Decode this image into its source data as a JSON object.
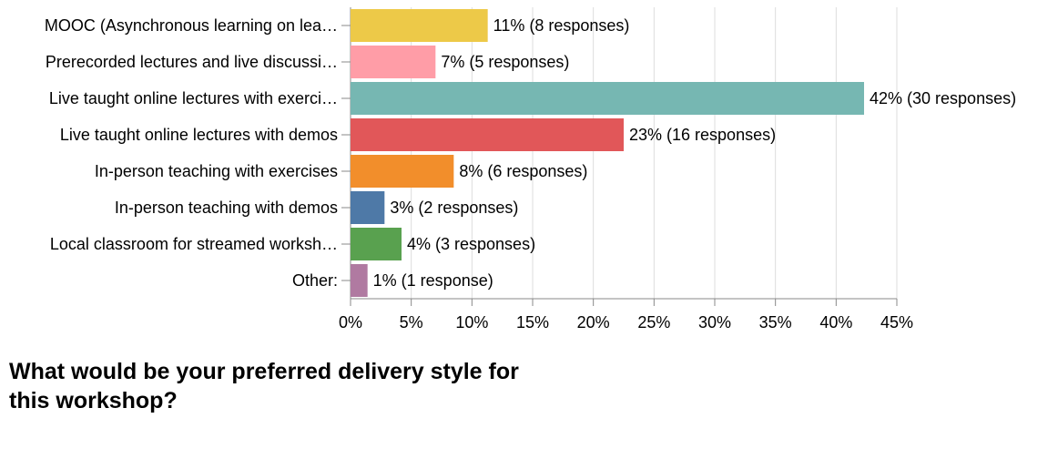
{
  "chart_data": {
    "type": "hbar",
    "title": "What would be your preferred delivery style for this workshop?",
    "categories": [
      "MOOC (Asynchronous learning on lea…",
      "Prerecorded lectures and live discussi…",
      "Live taught online lectures with exerci…",
      "Live taught online lectures with demos",
      "In-person teaching with exercises",
      "In-person teaching with demos",
      "Local classroom for streamed worksh…",
      "Other:"
    ],
    "values": [
      11.3,
      7.0,
      42.3,
      22.5,
      8.5,
      2.8,
      4.2,
      1.4
    ],
    "value_labels": [
      "11% (8 responses)",
      "7% (5 responses)",
      "42% (30 responses)",
      "23% (16 responses)",
      "8% (6 responses)",
      "3% (2 responses)",
      "4% (3 responses)",
      "1% (1 response)"
    ],
    "colors": [
      "#edc948",
      "#ff9da7",
      "#76b7b2",
      "#e15759",
      "#f28e2b",
      "#4e79a7",
      "#59a14f",
      "#b07aa1"
    ],
    "xlim": [
      0,
      45
    ],
    "xticks": [
      {
        "value": 0,
        "label": "0%"
      },
      {
        "value": 5,
        "label": "5%"
      },
      {
        "value": 10,
        "label": "10%"
      },
      {
        "value": 15,
        "label": "15%"
      },
      {
        "value": 20,
        "label": "20%"
      },
      {
        "value": 25,
        "label": "25%"
      },
      {
        "value": 30,
        "label": "30%"
      },
      {
        "value": 35,
        "label": "35%"
      },
      {
        "value": 40,
        "label": "40%"
      },
      {
        "value": 45,
        "label": "45%"
      }
    ],
    "grid": true
  }
}
